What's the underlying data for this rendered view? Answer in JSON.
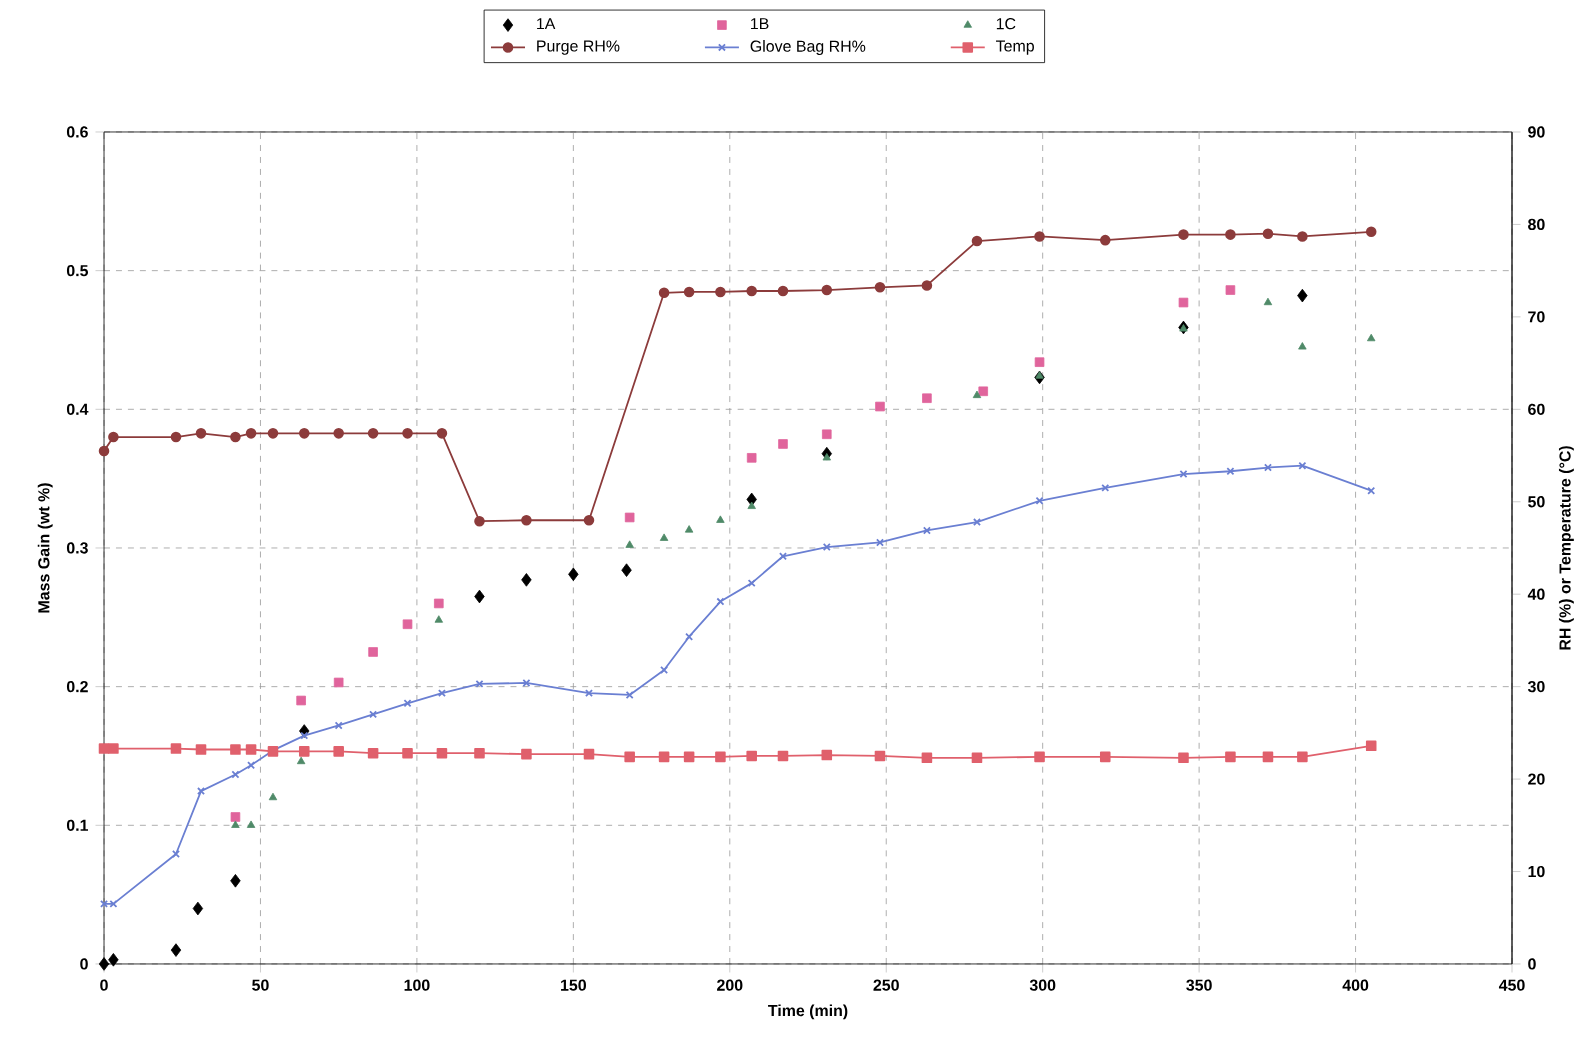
{
  "chart_data": {
    "type": "line",
    "xlabel": "Time (min)",
    "ylabel": "Mass Gain (wt %)",
    "y2label": "RH (%) or Temperature (°C)",
    "xlim": [
      0,
      450
    ],
    "xticks": [
      0,
      50,
      100,
      150,
      200,
      250,
      300,
      350,
      400,
      450
    ],
    "ylim": [
      0,
      0.6
    ],
    "yticks": [
      0,
      0.1,
      0.2,
      0.3,
      0.4,
      0.5,
      0.6
    ],
    "y2lim": [
      0,
      90
    ],
    "y2ticks": [
      0,
      10,
      20,
      30,
      40,
      50,
      60,
      70,
      80,
      90
    ],
    "grid": true,
    "legend": "top",
    "series": [
      {
        "name": "1A",
        "type": "scatter",
        "marker": "diamond",
        "color": "#000000",
        "x": [
          0,
          3,
          23,
          30,
          42,
          64,
          120,
          135,
          150,
          167,
          207,
          231,
          299,
          345,
          383
        ],
        "values": [
          0,
          0.003,
          0.01,
          0.04,
          0.06,
          0.168,
          0.265,
          0.277,
          0.281,
          0.284,
          0.335,
          0.368,
          0.423,
          0.459,
          0.482
        ]
      },
      {
        "name": "1B",
        "type": "scatter",
        "marker": "square",
        "color": "#e0649c",
        "x": [
          42,
          63,
          75,
          86,
          97,
          107,
          168,
          207,
          217,
          231,
          248,
          263,
          281,
          299,
          345,
          360
        ],
        "values": [
          0.106,
          0.19,
          0.203,
          0.225,
          0.245,
          0.26,
          0.322,
          0.365,
          0.375,
          0.382,
          0.402,
          0.408,
          0.413,
          0.434,
          0.477,
          0.486
        ]
      },
      {
        "name": "1C",
        "type": "scatter",
        "marker": "triangle",
        "color": "#4f8a68",
        "x": [
          42,
          47,
          54,
          63,
          107,
          168,
          179,
          187,
          197,
          207,
          231,
          279,
          299,
          345,
          372,
          383,
          405
        ],
        "values": [
          0.1,
          0.1,
          0.12,
          0.146,
          0.248,
          0.302,
          0.307,
          0.313,
          0.32,
          0.33,
          0.365,
          0.41,
          0.424,
          0.458,
          0.477,
          0.445,
          0.451
        ]
      },
      {
        "name": "Purge RH%",
        "axis": "y2",
        "marker": "circle",
        "color": "#8c3b3b",
        "x": [
          0,
          3,
          23,
          31,
          42,
          47,
          54,
          64,
          75,
          86,
          97,
          108,
          120,
          135,
          155,
          179,
          187,
          197,
          207,
          217,
          231,
          248,
          263,
          279,
          299,
          320,
          345,
          360,
          372,
          383,
          405
        ],
        "values": [
          55.5,
          57.0,
          57.0,
          57.4,
          57.0,
          57.4,
          57.4,
          57.4,
          57.4,
          57.4,
          57.4,
          57.4,
          47.9,
          48.0,
          48.0,
          72.6,
          72.7,
          72.7,
          72.8,
          72.8,
          72.9,
          73.2,
          73.4,
          78.2,
          78.7,
          78.3,
          78.9,
          78.9,
          79.0,
          78.7,
          79.2
        ]
      },
      {
        "name": "Glove Bag RH%",
        "axis": "y2",
        "marker": "cross",
        "color": "#6a7fd2",
        "x": [
          0,
          3,
          23,
          31,
          42,
          47,
          54,
          64,
          75,
          86,
          97,
          108,
          120,
          135,
          155,
          168,
          179,
          187,
          197,
          207,
          217,
          231,
          248,
          263,
          279,
          299,
          320,
          345,
          360,
          372,
          383,
          405
        ],
        "values": [
          6.5,
          6.5,
          11.9,
          18.7,
          20.5,
          21.5,
          23.1,
          24.7,
          25.8,
          27.0,
          28.2,
          29.3,
          30.3,
          30.4,
          29.3,
          29.1,
          31.8,
          35.4,
          39.2,
          41.2,
          44.1,
          45.1,
          45.6,
          46.9,
          47.8,
          50.1,
          51.5,
          53.0,
          53.3,
          53.7,
          53.9,
          51.2
        ]
      },
      {
        "name": "Temp",
        "axis": "y2",
        "marker": "square",
        "color": "#e0606c",
        "x": [
          0,
          3,
          23,
          31,
          42,
          47,
          54,
          64,
          75,
          86,
          97,
          108,
          120,
          135,
          155,
          168,
          179,
          187,
          197,
          207,
          217,
          231,
          248,
          263,
          279,
          299,
          320,
          345,
          360,
          372,
          383,
          405
        ],
        "values": [
          23.3,
          23.3,
          23.3,
          23.2,
          23.2,
          23.2,
          23.0,
          23.0,
          23.0,
          22.8,
          22.8,
          22.8,
          22.8,
          22.7,
          22.7,
          22.4,
          22.4,
          22.4,
          22.4,
          22.5,
          22.5,
          22.6,
          22.5,
          22.3,
          22.3,
          22.4,
          22.4,
          22.3,
          22.4,
          22.4,
          22.4,
          23.6
        ]
      }
    ]
  }
}
